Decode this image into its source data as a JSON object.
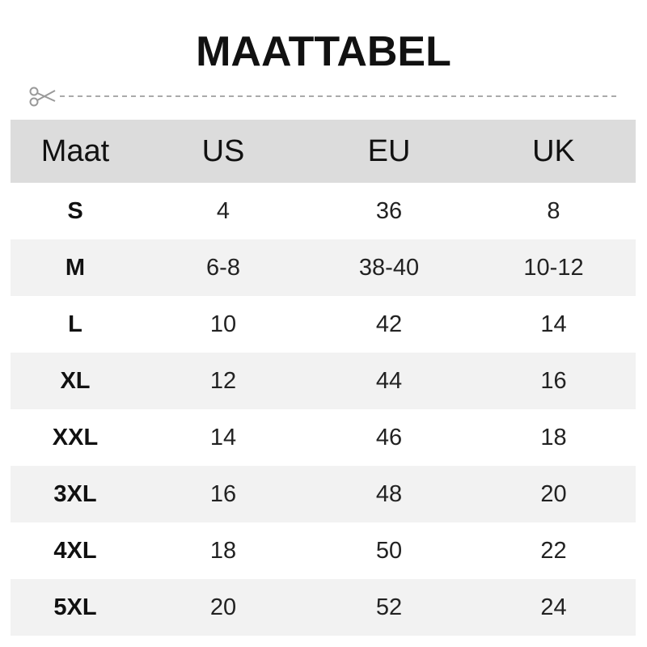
{
  "title": "MAATTABEL",
  "icons": {
    "cut": "scissors-icon"
  },
  "table": {
    "headers": [
      "Maat",
      "US",
      "EU",
      "UK"
    ],
    "rows": [
      [
        "S",
        "4",
        "36",
        "8"
      ],
      [
        "M",
        "6-8",
        "38-40",
        "10-12"
      ],
      [
        "L",
        "10",
        "42",
        "14"
      ],
      [
        "XL",
        "12",
        "44",
        "16"
      ],
      [
        "XXL",
        "14",
        "46",
        "18"
      ],
      [
        "3XL",
        "16",
        "48",
        "20"
      ],
      [
        "4XL",
        "18",
        "50",
        "22"
      ],
      [
        "5XL",
        "20",
        "52",
        "24"
      ]
    ]
  },
  "colors": {
    "header_bg": "#dcdcdc",
    "alt_row_bg": "#f2f2f2",
    "text": "#111111"
  }
}
